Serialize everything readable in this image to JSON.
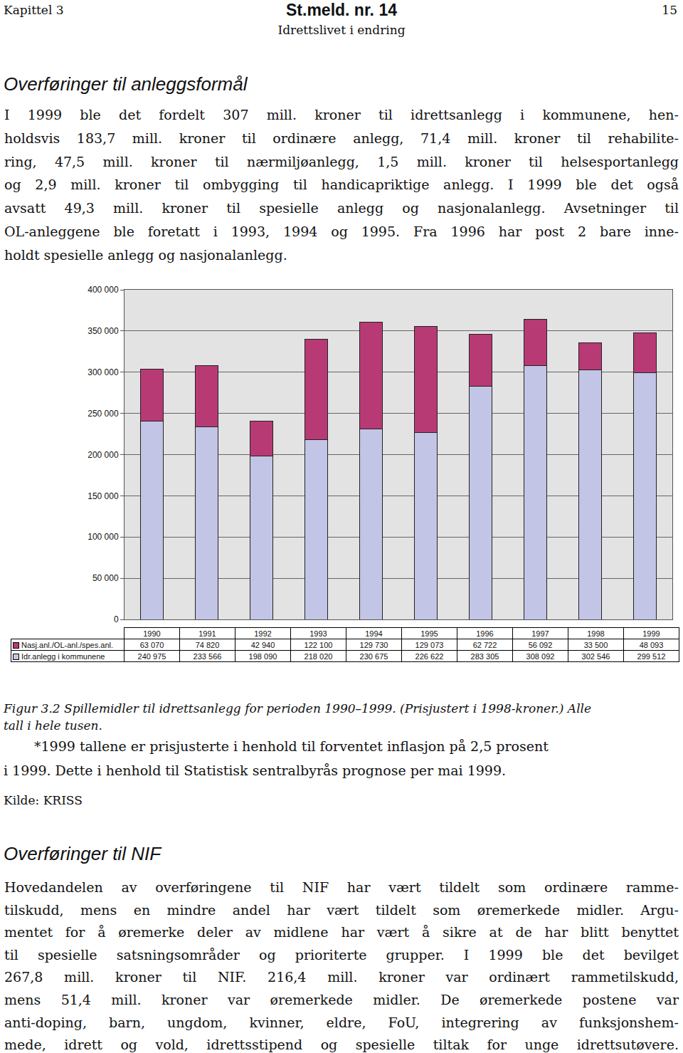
{
  "header": {
    "chapter": "Kapittel 3",
    "title": "St.meld. nr. 14",
    "page": "15",
    "subtitle": "Idrettslivet i endring"
  },
  "section1": {
    "heading": "Overføringer til anleggsformål",
    "lines": [
      "I 1999 ble det fordelt 307 mill. kroner til idrettsanlegg i kommunene, hen-",
      "holdsvis 183,7 mill. kroner til ordinære anlegg, 71,4 mill. kroner til rehabilite-",
      "ring, 47,5 mill. kroner til nærmiljøanlegg, 1,5 mill. kroner til helsesportanlegg",
      "og 2,9 mill. kroner til ombygging til handicapriktige anlegg. I 1999 ble det også",
      "avsatt 49,3 mill. kroner til spesielle anlegg og nasjonalanlegg. Avsetninger til",
      "OL-anleggene ble foretatt i 1993, 1994 og 1995. Fra 1996 har post 2 bare inne-",
      "holdt spesielle anlegg og nasjonalanlegg."
    ]
  },
  "chart_data": {
    "type": "bar",
    "categories": [
      "1990",
      "1991",
      "1992",
      "1993",
      "1994",
      "1995",
      "1996",
      "1997",
      "1998",
      "1999"
    ],
    "series": [
      {
        "name": "Idr.anlegg i kommunene",
        "color": "#c3c5e6",
        "values": [
          240975,
          233566,
          198090,
          218020,
          230675,
          226622,
          283305,
          308092,
          302546,
          299512
        ],
        "value_labels": [
          "240 975",
          "233 566",
          "198 090",
          "218 020",
          "230 675",
          "226 622",
          "283 305",
          "308 092",
          "302 546",
          "299 512"
        ]
      },
      {
        "name": "Nasj.anl./OL-anl./spes.anl.",
        "color": "#b83a74",
        "values": [
          63070,
          74820,
          42940,
          122100,
          129730,
          129073,
          62722,
          56092,
          33500,
          48093
        ],
        "value_labels": [
          "63 070",
          "74 820",
          "42 940",
          "122 100",
          "129 730",
          "129 073",
          "62 722",
          "56 092",
          "33 500",
          "48 093"
        ]
      }
    ],
    "stacked": true,
    "ylim": [
      0,
      400000
    ],
    "yticks": [
      0,
      {
        "value": 50000,
        "label": "50 000"
      },
      {
        "value": 100000,
        "label": "100 000"
      },
      {
        "value": 150000,
        "label": "150 000"
      },
      {
        "value": 200000,
        "label": "200 000"
      },
      {
        "value": 250000,
        "label": "250 000"
      },
      {
        "value": 300000,
        "label": "300 000"
      },
      {
        "value": 350000,
        "label": "350 000"
      },
      {
        "value": 400000,
        "label": "400 000"
      }
    ],
    "grid": true,
    "tick_labels": "y"
  },
  "caption": [
    "Figur 3.2 Spillemidler til idrettsanlegg for perioden 1990–1999. (Prisjustert i 1998-kroner.) Alle",
    "tall i hele tusen."
  ],
  "note": [
    "*1999 tallene er prisjusterte i henhold til forventet inflasjon på 2,5 prosent",
    "i 1999. Dette i henhold til Statistisk sentralbyrås prognose per mai 1999."
  ],
  "source": "Kilde: KRISS",
  "section2": {
    "heading": "Overføringer til NIF",
    "lines": [
      "Hovedandelen av overføringene til NIF har vært tildelt som ordinære ramme-",
      "tilskudd, mens en mindre andel har vært tildelt som øremerkede midler. Argu-",
      "mentet for å øremerke deler av midlene har vært å sikre at de har blitt benyttet",
      "til spesielle satsningsområder og prioriterte grupper. I 1999 ble det bevilget",
      "267,8 mill. kroner til NIF. 216,4 mill. kroner var ordinært rammetilskudd,",
      "mens 51,4 mill. kroner var øremerkede midler. De øremerkede postene var",
      "anti-doping, barn, ungdom, kvinner, eldre, FoU, integrering av funksjonshem-",
      "mede, idrett og vold, idrettsstipend og spesielle tiltak for unge idrettsutøvere."
    ]
  }
}
